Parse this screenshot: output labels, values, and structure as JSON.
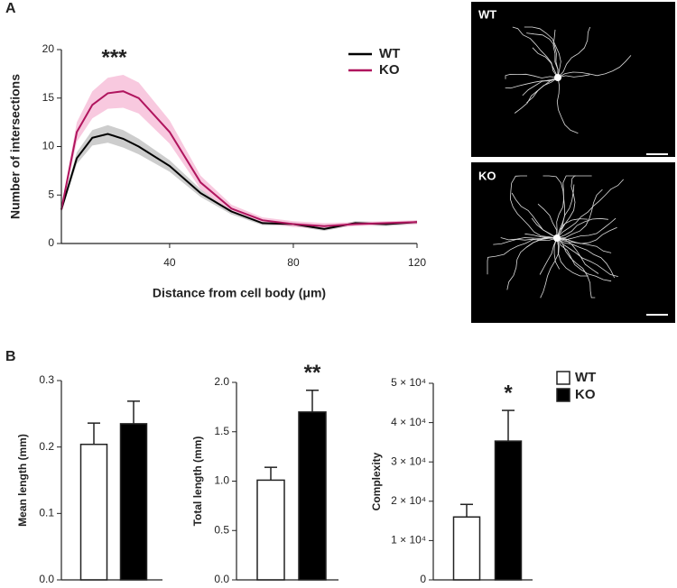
{
  "panels": [
    "A",
    "B"
  ],
  "micrographs": [
    {
      "label": "WT"
    },
    {
      "label": "KO"
    }
  ],
  "chart_data": [
    {
      "type": "line",
      "y_label": "Number of intersections",
      "x_label": "Distance from cell body (μm)",
      "annotation": "***",
      "x": [
        5,
        10,
        15,
        20,
        25,
        30,
        40,
        50,
        60,
        70,
        80,
        90,
        100,
        110,
        120
      ],
      "xlim": [
        5,
        120
      ],
      "xticks": [
        40,
        80,
        120
      ],
      "ylim": [
        0,
        20
      ],
      "yticks": [
        0,
        5,
        10,
        15,
        20
      ],
      "series": [
        {
          "name": "WT",
          "color": "#000000",
          "band_color": "#c8c8c8",
          "values": [
            3.5,
            8.8,
            10.9,
            11.3,
            10.8,
            10.0,
            8.0,
            5.2,
            3.3,
            2.1,
            2.0,
            1.5,
            2.1,
            2.0,
            2.2
          ],
          "errors": [
            0.3,
            0.6,
            0.8,
            0.9,
            0.9,
            0.8,
            0.6,
            0.4,
            0.3,
            0.2,
            0.2,
            0.2,
            0.2,
            0.2,
            0.2
          ]
        },
        {
          "name": "KO",
          "color": "#b0155e",
          "band_color": "#f7c3dc",
          "values": [
            3.5,
            11.5,
            14.3,
            15.5,
            15.7,
            15.0,
            11.5,
            6.3,
            3.6,
            2.4,
            2.0,
            1.8,
            2.0,
            2.1,
            2.2
          ],
          "errors": [
            0.3,
            1.0,
            1.4,
            1.6,
            1.7,
            1.6,
            1.2,
            0.7,
            0.4,
            0.3,
            0.3,
            0.3,
            0.2,
            0.2,
            0.2
          ]
        }
      ]
    },
    {
      "type": "bar",
      "y_label": "Mean length (mm)",
      "ylim": [
        0,
        0.3
      ],
      "yticks": [
        {
          "value": 0,
          "label": "0.0"
        },
        0.1,
        0.2,
        0.3
      ],
      "series": [
        {
          "color": "#ffffff",
          "values": [
            0.204
          ],
          "errors": [
            0.032
          ]
        },
        {
          "color": "#000000",
          "values": [
            0.235
          ],
          "errors": [
            0.034
          ]
        }
      ]
    },
    {
      "type": "bar",
      "y_label": "Total length (mm)",
      "annotation": "**",
      "ylim": [
        0,
        2
      ],
      "yticks": [
        {
          "value": 0,
          "label": "0.0"
        },
        0.5,
        {
          "value": 1,
          "label": "1.0"
        },
        1.5,
        {
          "value": 2,
          "label": "2.0"
        }
      ],
      "series": [
        {
          "color": "#ffffff",
          "values": [
            1.01
          ],
          "errors": [
            0.13
          ]
        },
        {
          "color": "#000000",
          "values": [
            1.7
          ],
          "errors": [
            0.22
          ]
        }
      ]
    },
    {
      "type": "bar",
      "y_label": "Complexity",
      "annotation": "*",
      "ylim": [
        0,
        50000
      ],
      "yticks": [
        0,
        {
          "value": 10000,
          "label": "1 × 10⁴"
        },
        {
          "value": 20000,
          "label": "2 × 10⁴"
        },
        {
          "value": 30000,
          "label": "3 × 10⁴"
        },
        {
          "value": 40000,
          "label": "4 × 10⁴"
        },
        {
          "value": 50000,
          "label": "5 × 10⁴"
        }
      ],
      "series": [
        {
          "name": "WT",
          "color": "#ffffff",
          "values": [
            16000
          ],
          "errors": [
            3200
          ]
        },
        {
          "name": "KO",
          "color": "#000000",
          "values": [
            35300
          ],
          "errors": [
            7800
          ]
        }
      ]
    }
  ]
}
